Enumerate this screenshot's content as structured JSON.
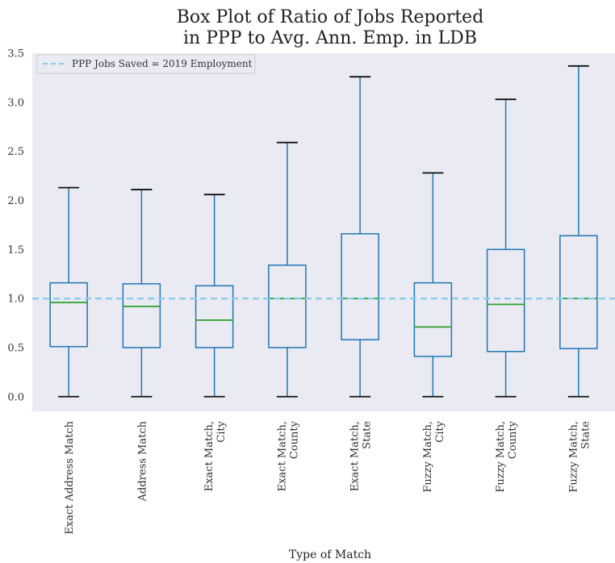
{
  "chart_data": {
    "type": "box",
    "title_line1": "Box Plot of Ratio of Jobs Reported",
    "title_line2": "in PPP to Avg. Ann. Emp. in LDB",
    "xlabel": "Type of Match",
    "ylabel": "",
    "ylim": [
      -0.15,
      3.5
    ],
    "yticks": [
      0.0,
      0.5,
      1.0,
      1.5,
      2.0,
      2.5,
      3.0,
      3.5
    ],
    "ytick_labels": [
      "0.0",
      "0.5",
      "1.0",
      "1.5",
      "2.0",
      "2.5",
      "3.0",
      "3.5"
    ],
    "grid": false,
    "background": "#eaeaf2",
    "box_color": "#1f77b4",
    "median_color": "#2ca02c",
    "cap_color": "#111111",
    "reference_line": {
      "y": 1.0,
      "color": "#88ccee",
      "style": "dashed",
      "label": "PPP Jobs Saved = 2019 Employment"
    },
    "legend_position": "top-left",
    "categories": [
      {
        "label_lines": [
          "Exact Address Match"
        ],
        "min": 0.0,
        "q1": 0.51,
        "median": 0.96,
        "q3": 1.16,
        "max": 2.13
      },
      {
        "label_lines": [
          "Address Match"
        ],
        "min": 0.0,
        "q1": 0.5,
        "median": 0.92,
        "q3": 1.15,
        "max": 2.11
      },
      {
        "label_lines": [
          "Exact Match,",
          "City"
        ],
        "min": 0.0,
        "q1": 0.5,
        "median": 0.78,
        "q3": 1.13,
        "max": 2.06
      },
      {
        "label_lines": [
          "Exact Match,",
          "County"
        ],
        "min": 0.0,
        "q1": 0.5,
        "median": 1.0,
        "q3": 1.34,
        "max": 2.59
      },
      {
        "label_lines": [
          "Exact Match,",
          "State"
        ],
        "min": 0.0,
        "q1": 0.58,
        "median": 1.0,
        "q3": 1.66,
        "max": 3.26
      },
      {
        "label_lines": [
          "Fuzzy Match,",
          "City"
        ],
        "min": 0.0,
        "q1": 0.41,
        "median": 0.71,
        "q3": 1.16,
        "max": 2.28
      },
      {
        "label_lines": [
          "Fuzzy Match,",
          "County"
        ],
        "min": 0.0,
        "q1": 0.46,
        "median": 0.94,
        "q3": 1.5,
        "max": 3.03
      },
      {
        "label_lines": [
          "Fuzzy Match,",
          "State"
        ],
        "min": 0.0,
        "q1": 0.49,
        "median": 1.0,
        "q3": 1.64,
        "max": 3.37
      }
    ]
  }
}
